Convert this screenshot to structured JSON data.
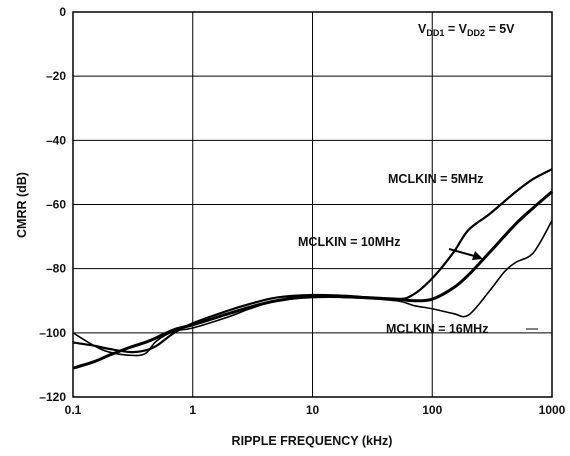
{
  "chart_data": {
    "type": "line",
    "xlabel": "RIPPLE FREQUENCY (kHz)",
    "ylabel": "CMRR (dB)",
    "x_scale": "log",
    "xlim": [
      0.1,
      1000
    ],
    "ylim": [
      -120,
      0
    ],
    "grid": true,
    "x_ticks": [
      0.1,
      1,
      10,
      100,
      1000
    ],
    "x_tick_labels": [
      "0.1",
      "1",
      "10",
      "100",
      "1000"
    ],
    "y_ticks": [
      0,
      -20,
      -40,
      -60,
      -80,
      -100,
      -120
    ],
    "y_tick_labels": [
      "0",
      "–20",
      "–40",
      "–60",
      "–80",
      "–100",
      "–120"
    ],
    "condition": {
      "v1": "V",
      "s1": "DD1",
      "eq1": " = ",
      "v2": "V",
      "s2": "DD2",
      "eq2": " = 5V"
    },
    "series": [
      {
        "name": "MCLKIN = 5MHz",
        "x": [
          0.1,
          0.15,
          0.2,
          0.3,
          0.4,
          0.5,
          0.7,
          1,
          2,
          3,
          5,
          10,
          20,
          50,
          70,
          100,
          150,
          200,
          300,
          500,
          700,
          1000
        ],
        "y": [
          -103,
          -104,
          -105,
          -106,
          -105.5,
          -104,
          -100,
          -97,
          -93,
          -91,
          -89,
          -88.2,
          -88.5,
          -89.5,
          -88,
          -83,
          -75,
          -68,
          -63,
          -56,
          -52,
          -49
        ]
      },
      {
        "name": "MCLKIN = 10MHz",
        "x": [
          0.1,
          0.15,
          0.2,
          0.3,
          0.4,
          0.5,
          0.7,
          1,
          2,
          3,
          5,
          10,
          20,
          50,
          70,
          100,
          150,
          200,
          300,
          500,
          700,
          1000
        ],
        "y": [
          -111,
          -109,
          -107,
          -104.5,
          -103,
          -101.5,
          -99,
          -97.5,
          -94,
          -92,
          -90,
          -88.5,
          -88.8,
          -89.5,
          -90,
          -89.5,
          -86,
          -82,
          -75,
          -66,
          -61,
          -56
        ]
      },
      {
        "name": "MCLKIN = 16MHz",
        "x": [
          0.1,
          0.15,
          0.2,
          0.3,
          0.4,
          0.5,
          0.7,
          1,
          2,
          3,
          5,
          10,
          20,
          50,
          70,
          100,
          150,
          200,
          300,
          400,
          500,
          700,
          1000
        ],
        "y": [
          -100,
          -104,
          -106,
          -107,
          -106.5,
          -102.5,
          -99.5,
          -98.5,
          -95,
          -92.5,
          -90,
          -89,
          -89,
          -90,
          -91.5,
          -92.5,
          -94,
          -94.5,
          -87,
          -81,
          -78,
          -75,
          -65
        ]
      }
    ]
  }
}
